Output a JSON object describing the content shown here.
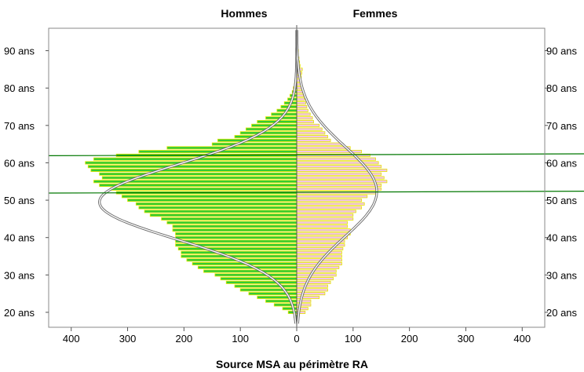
{
  "chart_data": {
    "type": "bar",
    "orientation": "horizontal",
    "subtype": "population-pyramid",
    "title": "",
    "xlabel": "Source MSA au périmètre RA",
    "ylabel": "",
    "gender_titles": {
      "left": "Hommes",
      "right": "Femmes"
    },
    "xlim": [
      -440,
      440
    ],
    "ylim": [
      16,
      96
    ],
    "x_ticks": [
      -400,
      -300,
      -200,
      -100,
      0,
      100,
      200,
      300,
      400
    ],
    "x_tick_labels": [
      "400",
      "300",
      "200",
      "100",
      "0",
      "100",
      "200",
      "300",
      "400"
    ],
    "y_ticks": [
      20,
      30,
      40,
      50,
      60,
      70,
      80,
      90
    ],
    "y_tick_labels": [
      "20 ans",
      "30 ans",
      "40 ans",
      "50 ans",
      "60 ans",
      "70 ans",
      "80 ans",
      "90 ans"
    ],
    "ages": [
      19,
      20,
      21,
      22,
      23,
      24,
      25,
      26,
      27,
      28,
      29,
      30,
      31,
      32,
      33,
      34,
      35,
      36,
      37,
      38,
      39,
      40,
      41,
      42,
      43,
      44,
      45,
      46,
      47,
      48,
      49,
      50,
      51,
      52,
      53,
      54,
      55,
      56,
      57,
      58,
      59,
      60,
      61,
      62,
      63,
      64,
      65,
      66,
      67,
      68,
      69,
      70,
      71,
      72,
      73,
      74,
      75,
      76,
      77,
      78,
      79,
      80,
      81,
      82,
      83,
      84,
      85,
      86,
      87,
      88,
      89,
      90,
      91,
      92,
      93,
      94,
      95
    ],
    "series": [
      {
        "name": "Hommes",
        "color": "#33cc33",
        "border": "#e6e600",
        "values": [
          5,
          15,
          25,
          40,
          55,
          70,
          85,
          100,
          110,
          125,
          135,
          145,
          165,
          175,
          185,
          195,
          205,
          205,
          210,
          215,
          215,
          215,
          215,
          220,
          220,
          230,
          240,
          260,
          270,
          280,
          285,
          300,
          310,
          320,
          330,
          350,
          360,
          345,
          350,
          365,
          370,
          375,
          360,
          320,
          280,
          230,
          150,
          140,
          110,
          100,
          90,
          80,
          70,
          55,
          45,
          35,
          28,
          22,
          16,
          12,
          8,
          6,
          4,
          3,
          2,
          1,
          1,
          0,
          0,
          0,
          0,
          0,
          0,
          0,
          0,
          0,
          0
        ]
      },
      {
        "name": "Femmes",
        "color": "#f2c4e8",
        "border": "#e6e600",
        "values": [
          3,
          15,
          20,
          25,
          25,
          40,
          50,
          55,
          55,
          60,
          65,
          70,
          70,
          75,
          80,
          80,
          80,
          80,
          82,
          85,
          85,
          90,
          95,
          95,
          90,
          90,
          100,
          100,
          105,
          115,
          120,
          115,
          125,
          140,
          150,
          150,
          160,
          155,
          150,
          160,
          150,
          145,
          140,
          130,
          115,
          95,
          80,
          60,
          55,
          50,
          45,
          40,
          30,
          28,
          24,
          20,
          18,
          16,
          14,
          12,
          12,
          10,
          8,
          7,
          8,
          9,
          10,
          6,
          5,
          4,
          3,
          3,
          2,
          2,
          1,
          1,
          1
        ]
      }
    ],
    "reference_lines": [
      {
        "color": "#007700",
        "y_left": 61.9,
        "y_right": 62.4
      },
      {
        "color": "#007700",
        "y_left": 51.9,
        "y_right": 52.4
      }
    ],
    "normal_curves": [
      {
        "side": "Hommes",
        "peak": 350,
        "mean": 49.5,
        "sd": 10
      },
      {
        "side": "Femmes",
        "peak": 142,
        "mean": 52.3,
        "sd": 12
      }
    ],
    "grid": false,
    "legend": "none"
  }
}
